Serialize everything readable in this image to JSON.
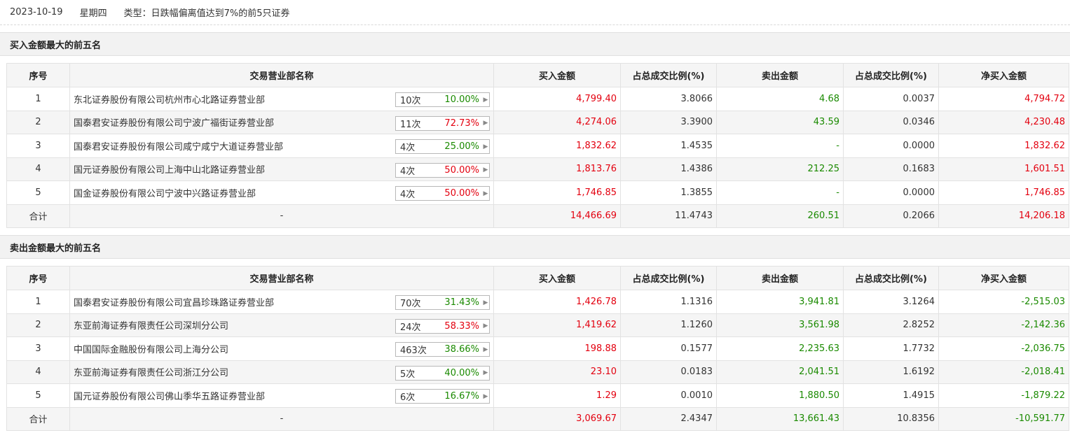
{
  "header": {
    "date": "2023-10-19",
    "weekday": "星期四",
    "type": "类型：日跌幅偏离值达到7%的前5只证券"
  },
  "columns": [
    "序号",
    "交易营业部名称",
    "买入金额",
    "占总成交比例(%)",
    "卖出金额",
    "占总成交比例(%)",
    "净买入金额"
  ],
  "sections": [
    {
      "title": "买入金额最大的前五名",
      "rows": [
        {
          "idx": "1",
          "name": "东北证券股份有限公司杭州市心北路证券营业部",
          "count": "10次",
          "pct": "10.00%",
          "pct_color": "green",
          "buy": "4,799.40",
          "buy_ratio": "3.8066",
          "sell": "4.68",
          "sell_ratio": "0.0037",
          "net": "4,794.72",
          "net_color": "red"
        },
        {
          "idx": "2",
          "name": "国泰君安证券股份有限公司宁波广福街证券营业部",
          "count": "11次",
          "pct": "72.73%",
          "pct_color": "red",
          "buy": "4,274.06",
          "buy_ratio": "3.3900",
          "sell": "43.59",
          "sell_ratio": "0.0346",
          "net": "4,230.48",
          "net_color": "red"
        },
        {
          "idx": "3",
          "name": "国泰君安证券股份有限公司咸宁咸宁大道证券营业部",
          "count": "4次",
          "pct": "25.00%",
          "pct_color": "green",
          "buy": "1,832.62",
          "buy_ratio": "1.4535",
          "sell": "-",
          "sell_ratio": "0.0000",
          "net": "1,832.62",
          "net_color": "red"
        },
        {
          "idx": "4",
          "name": "国元证券股份有限公司上海中山北路证券营业部",
          "count": "4次",
          "pct": "50.00%",
          "pct_color": "red",
          "buy": "1,813.76",
          "buy_ratio": "1.4386",
          "sell": "212.25",
          "sell_ratio": "0.1683",
          "net": "1,601.51",
          "net_color": "red"
        },
        {
          "idx": "5",
          "name": "国金证券股份有限公司宁波中兴路证券营业部",
          "count": "4次",
          "pct": "50.00%",
          "pct_color": "red",
          "buy": "1,746.85",
          "buy_ratio": "1.3855",
          "sell": "-",
          "sell_ratio": "0.0000",
          "net": "1,746.85",
          "net_color": "red"
        }
      ],
      "total": {
        "label": "合计",
        "name": "-",
        "buy": "14,466.69",
        "buy_ratio": "11.4743",
        "sell": "260.51",
        "sell_ratio": "0.2066",
        "net": "14,206.18",
        "net_color": "red"
      }
    },
    {
      "title": "卖出金额最大的前五名",
      "rows": [
        {
          "idx": "1",
          "name": "国泰君安证券股份有限公司宜昌珍珠路证券营业部",
          "count": "70次",
          "pct": "31.43%",
          "pct_color": "green",
          "buy": "1,426.78",
          "buy_ratio": "1.1316",
          "sell": "3,941.81",
          "sell_ratio": "3.1264",
          "net": "-2,515.03",
          "net_color": "green"
        },
        {
          "idx": "2",
          "name": "东亚前海证券有限责任公司深圳分公司",
          "count": "24次",
          "pct": "58.33%",
          "pct_color": "red",
          "buy": "1,419.62",
          "buy_ratio": "1.1260",
          "sell": "3,561.98",
          "sell_ratio": "2.8252",
          "net": "-2,142.36",
          "net_color": "green"
        },
        {
          "idx": "3",
          "name": "中国国际金融股份有限公司上海分公司",
          "count": "463次",
          "pct": "38.66%",
          "pct_color": "green",
          "buy": "198.88",
          "buy_ratio": "0.1577",
          "sell": "2,235.63",
          "sell_ratio": "1.7732",
          "net": "-2,036.75",
          "net_color": "green"
        },
        {
          "idx": "4",
          "name": "东亚前海证券有限责任公司浙江分公司",
          "count": "5次",
          "pct": "40.00%",
          "pct_color": "green",
          "buy": "23.10",
          "buy_ratio": "0.0183",
          "sell": "2,041.51",
          "sell_ratio": "1.6192",
          "net": "-2,018.41",
          "net_color": "green"
        },
        {
          "idx": "5",
          "name": "国元证券股份有限公司佛山季华五路证券营业部",
          "count": "6次",
          "pct": "16.67%",
          "pct_color": "green",
          "buy": "1.29",
          "buy_ratio": "0.0010",
          "sell": "1,880.50",
          "sell_ratio": "1.4915",
          "net": "-1,879.22",
          "net_color": "green"
        }
      ],
      "total": {
        "label": "合计",
        "name": "-",
        "buy": "3,069.67",
        "buy_ratio": "2.4347",
        "sell": "13,661.43",
        "sell_ratio": "10.8356",
        "net": "-10,591.77",
        "net_color": "green"
      }
    }
  ]
}
